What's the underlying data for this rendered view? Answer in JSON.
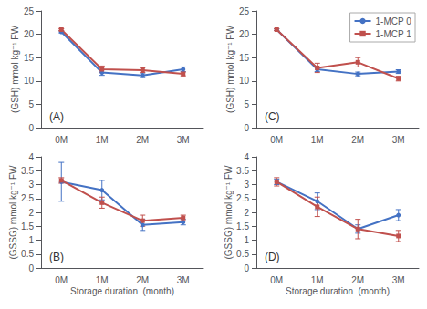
{
  "chart_data": [
    {
      "type": "line",
      "categories": [
        "0M",
        "1M",
        "2M",
        "3M"
      ],
      "ylabel": "(GSH) mmol kg⁻¹ FW",
      "annotation": "(A)",
      "ylim": [
        0,
        25
      ],
      "yticks": [
        0,
        5,
        10,
        15,
        20,
        25
      ],
      "grid": false,
      "series": [
        {
          "color": "#4472c4",
          "marker": "circle",
          "values": [
            20.5,
            11.8,
            11.2,
            12.5
          ],
          "errors": [
            0.2,
            0.6,
            0.5,
            0.5
          ]
        },
        {
          "color": "#c0504d",
          "marker": "square",
          "values": [
            21.0,
            12.5,
            12.3,
            11.5
          ],
          "errors": [
            0.2,
            0.7,
            0.5,
            0.4
          ]
        }
      ]
    },
    {
      "type": "line",
      "categories": [
        "0M",
        "1M",
        "2M",
        "3M"
      ],
      "ylabel": "(GSH) mmol kg⁻¹ FW",
      "annotation": "(C)",
      "ylim": [
        0,
        25
      ],
      "yticks": [
        0,
        5,
        10,
        15,
        20,
        25
      ],
      "grid": false,
      "legend": "upper right",
      "series": [
        {
          "name": "1-MCP 0",
          "color": "#4472c4",
          "marker": "circle",
          "values": [
            21.0,
            12.5,
            11.5,
            12.0
          ],
          "errors": [
            0.2,
            0.5,
            0.4,
            0.4
          ]
        },
        {
          "name": "1-MCP 1",
          "color": "#c0504d",
          "marker": "square",
          "values": [
            21.0,
            12.8,
            14.0,
            10.5
          ],
          "errors": [
            0.2,
            1.0,
            1.0,
            0.5
          ]
        }
      ]
    },
    {
      "type": "line",
      "categories": [
        "0M",
        "1M",
        "2M",
        "3M"
      ],
      "ylabel": "(GSSG) mmol kg⁻¹ FW",
      "xlabel": "Storage duration  (month)",
      "annotation": "(B)",
      "ylim": [
        0,
        4
      ],
      "yticks": [
        0,
        0.5,
        1,
        1.5,
        2,
        2.5,
        3,
        3.5,
        4
      ],
      "grid": false,
      "series": [
        {
          "color": "#4472c4",
          "marker": "circle",
          "values": [
            3.1,
            2.8,
            1.55,
            1.65
          ],
          "errors": [
            0.7,
            0.35,
            0.2,
            0.1
          ]
        },
        {
          "color": "#c0504d",
          "marker": "square",
          "values": [
            3.15,
            2.35,
            1.7,
            1.8
          ],
          "errors": [
            0.1,
            0.2,
            0.2,
            0.1
          ]
        }
      ]
    },
    {
      "type": "line",
      "categories": [
        "0M",
        "1M",
        "2M",
        "3M"
      ],
      "ylabel": "(GSSG) mmol kg⁻¹ FW",
      "xlabel": "Storage duration  (month)",
      "annotation": "(D)",
      "ylim": [
        0,
        4
      ],
      "yticks": [
        0,
        0.5,
        1,
        1.5,
        2,
        2.5,
        3,
        3.5,
        4
      ],
      "grid": false,
      "series": [
        {
          "color": "#4472c4",
          "marker": "circle",
          "values": [
            3.1,
            2.4,
            1.4,
            1.9
          ],
          "errors": [
            0.1,
            0.3,
            0.15,
            0.2
          ]
        },
        {
          "color": "#c0504d",
          "marker": "square",
          "values": [
            3.1,
            2.2,
            1.4,
            1.15
          ],
          "errors": [
            0.15,
            0.35,
            0.35,
            0.2
          ]
        }
      ]
    }
  ]
}
